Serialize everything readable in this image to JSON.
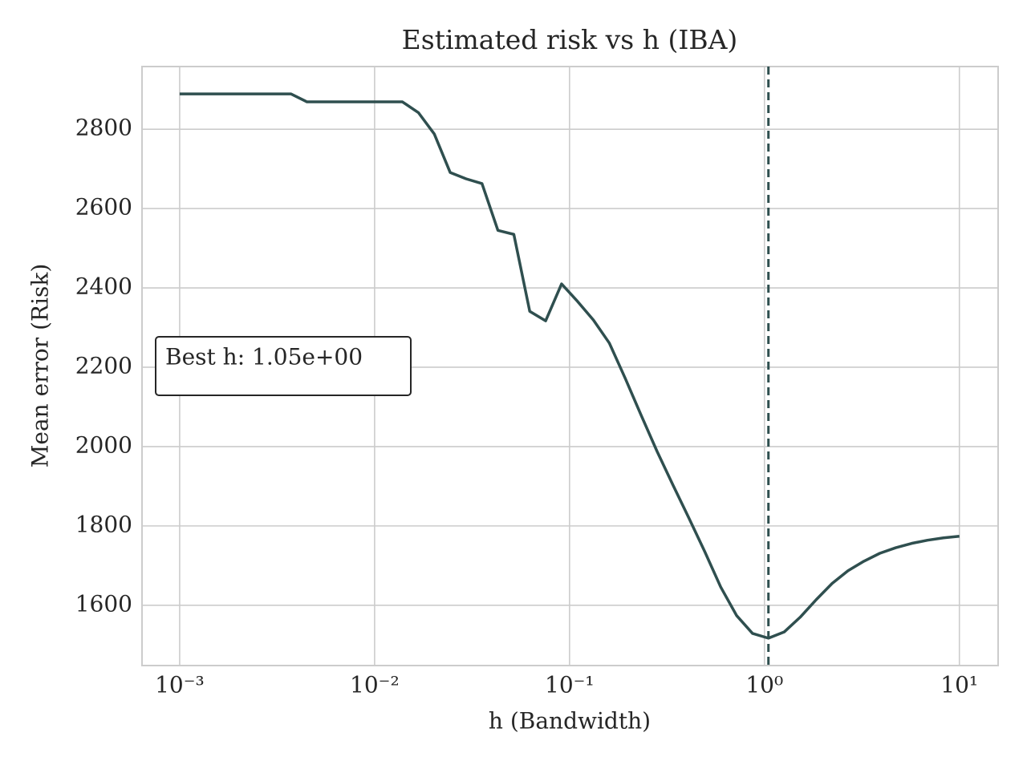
{
  "chart_data": {
    "type": "line",
    "title": "Estimated risk vs h (IBA)",
    "x_label": "h (Bandwidth)",
    "y_label": "Mean error (Risk)",
    "x_scale": "log",
    "grid": true,
    "color": "#2f4f4f",
    "x": [
      0.001,
      0.001207,
      0.001456,
      0.001758,
      0.002121,
      0.00256,
      0.003089,
      0.003728,
      0.004498,
      0.005429,
      0.006551,
      0.007906,
      0.009541,
      0.01151,
      0.01389,
      0.01677,
      0.02024,
      0.02442,
      0.02947,
      0.03556,
      0.04292,
      0.05179,
      0.0625,
      0.07543,
      0.09103,
      0.1099,
      0.1326,
      0.16,
      0.1931,
      0.233,
      0.2812,
      0.3393,
      0.4095,
      0.4942,
      0.5964,
      0.7197,
      0.8685,
      1.048,
      1.265,
      1.526,
      1.842,
      2.223,
      2.683,
      3.237,
      3.907,
      4.715,
      5.69,
      6.866,
      8.286,
      10
    ],
    "values": [
      2889,
      2889,
      2889,
      2889,
      2889,
      2889,
      2889,
      2889,
      2869,
      2869,
      2869,
      2869,
      2869,
      2869,
      2869,
      2842,
      2788,
      2691,
      2675,
      2663,
      2545,
      2535,
      2341,
      2317,
      2410,
      2366,
      2319,
      2261,
      2172,
      2079,
      1988,
      1903,
      1820,
      1735,
      1646,
      1574,
      1529,
      1517,
      1533,
      1570,
      1614,
      1655,
      1687,
      1711,
      1731,
      1745,
      1756,
      1764,
      1770,
      1774
    ],
    "vline": 1.048,
    "annotation": "Best h: 1.05e+00",
    "xlim": [
      0.000641,
      15.8
    ],
    "ylim": [
      1448,
      2958
    ],
    "xticks": [
      {
        "value": 0.001,
        "label": "10⁻³"
      },
      {
        "value": 0.01,
        "label": "10⁻²"
      },
      {
        "value": 0.1,
        "label": "10⁻¹"
      },
      {
        "value": 1,
        "label": "10⁰"
      },
      {
        "value": 10,
        "label": "10¹"
      }
    ],
    "yticks": [
      1600,
      1800,
      2000,
      2200,
      2400,
      2600,
      2800
    ]
  }
}
